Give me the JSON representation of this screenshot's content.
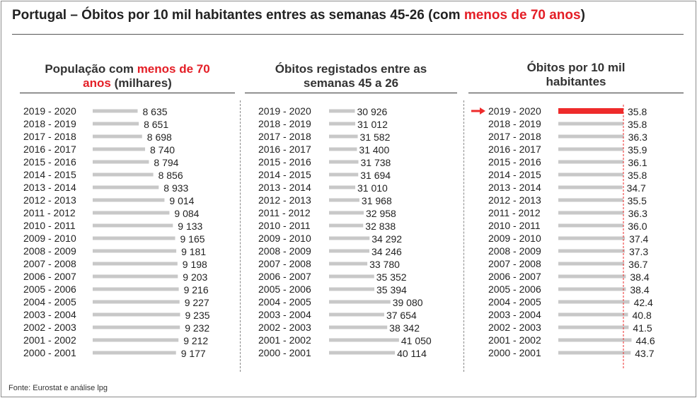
{
  "title": {
    "prefix": "Portugal – Óbitos por 10 mil habitantes entres as semanas 45-26 (com ",
    "highlight": "menos de 70 anos",
    "suffix": ")"
  },
  "footer": "Fonte: Eurostat e análise lpg",
  "colors": {
    "bar": "#c8c8c8",
    "highlight": "#ee2b2b",
    "accent_text": "#e41e26"
  },
  "chart_data": [
    {
      "type": "bar",
      "orientation": "horizontal",
      "title_parts": [
        "População com ",
        "menos de 70",
        "anos",
        " (milhares)"
      ],
      "categories": [
        "2019 - 2020",
        "2018 - 2019",
        "2017 - 2018",
        "2016 - 2017",
        "2015 - 2016",
        "2014 - 2015",
        "2013 - 2014",
        "2012 - 2013",
        "2011 - 2012",
        "2010 - 2011",
        "2009 - 2010",
        "2008 - 2009",
        "2007 - 2008",
        "2006 - 2007",
        "2005 - 2006",
        "2004 - 2005",
        "2003 - 2004",
        "2002 - 2003",
        "2001 - 2002",
        "2000 - 2001"
      ],
      "values": [
        8635,
        8651,
        8698,
        8740,
        8794,
        8856,
        8933,
        9014,
        9084,
        9133,
        9165,
        9181,
        9198,
        9203,
        9216,
        9227,
        9235,
        9232,
        9212,
        9177
      ],
      "labels": [
        "8 635",
        "8 651",
        "8 698",
        "8 740",
        "8 794",
        "8 856",
        "8 933",
        "9 014",
        "9 084",
        "9 133",
        "9 165",
        "9 181",
        "9 198",
        "9 203",
        "9 216",
        "9 227",
        "9 235",
        "9 232",
        "9 212",
        "9 177"
      ]
    },
    {
      "type": "bar",
      "orientation": "horizontal",
      "title_parts": [
        "Óbitos registados entre as",
        "semanas 45 a 26"
      ],
      "categories": [
        "2019 - 2020",
        "2018 - 2019",
        "2017 - 2018",
        "2016 - 2017",
        "2015 - 2016",
        "2014 - 2015",
        "2013 - 2014",
        "2012 - 2013",
        "2011 - 2012",
        "2010 - 2011",
        "2009 - 2010",
        "2008 - 2009",
        "2007 - 2008",
        "2006 - 2007",
        "2005 - 2006",
        "2004 - 2005",
        "2003 - 2004",
        "2002 - 2003",
        "2001 - 2002",
        "2000 - 2001"
      ],
      "values": [
        30926,
        31012,
        31582,
        31400,
        31738,
        31694,
        31010,
        31968,
        32958,
        32838,
        34292,
        34246,
        33780,
        35352,
        35394,
        39080,
        37654,
        38342,
        41050,
        40114
      ],
      "labels": [
        "30 926",
        "31 012",
        "31 582",
        "31 400",
        "31 738",
        "31 694",
        "31 010",
        "31 968",
        "32 958",
        "32 838",
        "34 292",
        "34 246",
        "33 780",
        "35 352",
        "35 394",
        "39 080",
        "37 654",
        "38 342",
        "41 050",
        "40 114"
      ]
    },
    {
      "type": "bar",
      "orientation": "horizontal",
      "title_parts": [
        "Óbitos por 10 mil",
        "habitantes"
      ],
      "categories": [
        "2019 - 2020",
        "2018 - 2019",
        "2017 - 2018",
        "2016 - 2017",
        "2015 - 2016",
        "2014 - 2015",
        "2013 - 2014",
        "2012 - 2013",
        "2011 - 2012",
        "2010 - 2011",
        "2009 - 2010",
        "2008 - 2009",
        "2007 - 2008",
        "2006 - 2007",
        "2005 - 2006",
        "2004 - 2005",
        "2003 - 2004",
        "2002 - 2003",
        "2001 - 2002",
        "2000 - 2001"
      ],
      "values": [
        35.8,
        35.8,
        36.3,
        35.9,
        36.1,
        35.8,
        34.7,
        35.5,
        36.3,
        36.0,
        37.4,
        37.3,
        36.7,
        38.4,
        38.4,
        42.4,
        40.8,
        41.5,
        44.6,
        43.7
      ],
      "labels": [
        "35.8",
        "35.8",
        "36.3",
        "35.9",
        "36.1",
        "35.8",
        "34.7",
        "35.5",
        "36.3",
        "36.0",
        "37.4",
        "37.3",
        "36.7",
        "38.4",
        "38.4",
        "42.4",
        "40.8",
        "41.5",
        "44.6",
        "43.7"
      ],
      "highlight_index": 0,
      "reference_line_value": 35.8
    }
  ]
}
